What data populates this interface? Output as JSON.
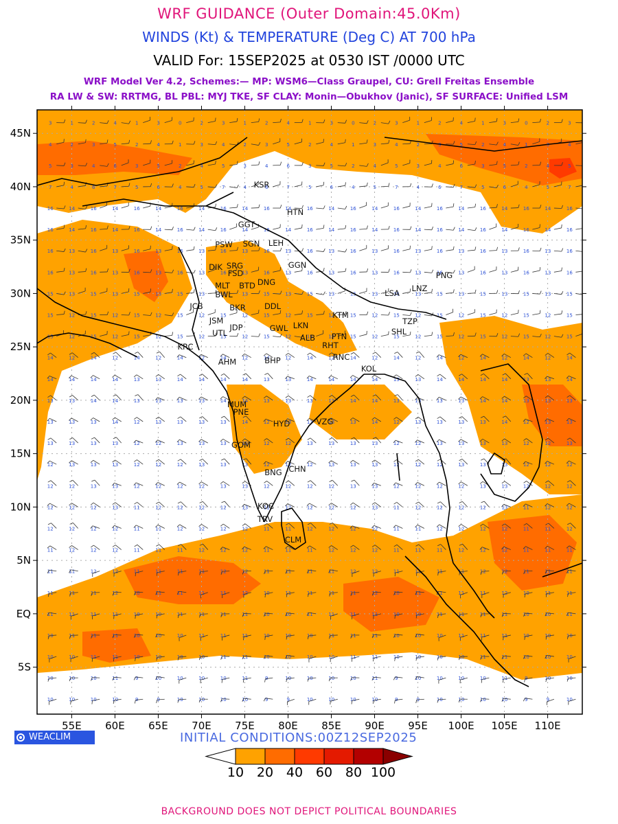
{
  "header": {
    "title": "WRF GUIDANCE (Outer Domain:45.0Km)",
    "subtitle": "WINDS (Kt) & TEMPERATURE (Deg C) AT 700 hPa",
    "valid": "VALID For: 15SEP2025 at 0530 IST /0000 UTC",
    "model_line1": "WRF Model Ver 4.2, Schemes:— MP: WSM6—Class Graupel, CU: Grell Freitas Ensemble",
    "model_line2": "RA LW & SW: RRTMG, BL PBL: MYJ TKE, SF CLAY: Monin—Obukhov (Janic), SF SURFACE: Unified LSM"
  },
  "map": {
    "lat_labels": [
      "45N",
      "40N",
      "35N",
      "30N",
      "25N",
      "20N",
      "15N",
      "10N",
      "5N",
      "EQ",
      "5S"
    ],
    "lon_labels": [
      "55E",
      "60E",
      "65E",
      "70E",
      "75E",
      "80E",
      "85E",
      "90E",
      "95E",
      "100E",
      "105E",
      "110E"
    ],
    "stations": [
      "KSR",
      "HTN",
      "GGT",
      "PSW",
      "SGN",
      "LEH",
      "DIK",
      "SRG",
      "FSD",
      "GGN",
      "MLT",
      "BTD",
      "DNG",
      "BWL",
      "JCB",
      "BKR",
      "DDL",
      "LSA",
      "LNZ",
      "PNG",
      "JSM",
      "JDP",
      "GWL",
      "LKN",
      "KTM",
      "TZP",
      "UTL",
      "ALB",
      "PTN",
      "SHL",
      "KRC",
      "BHP",
      "RHT",
      "RNC",
      "AHM",
      "KOL",
      "MUM",
      "PNE",
      "HYD",
      "VZG",
      "GOM",
      "BNG",
      "CHN",
      "KOC",
      "TRV",
      "CLM"
    ]
  },
  "legend": {
    "labels": [
      "10",
      "20",
      "40",
      "60",
      "80",
      "100"
    ],
    "colors": [
      "#ffffff",
      "#ffa200",
      "#ff6c00",
      "#ff3a00",
      "#e41a00",
      "#b30000",
      "#8a0000"
    ]
  },
  "colors": {
    "wind_shade_1": "#ffa200",
    "wind_shade_2": "#ff6c00",
    "wind_shade_3": "#ff3a00",
    "temperature_text": "#2a4fd6",
    "grid": "#aaaaaa"
  },
  "temperature_values": [
    "0",
    "1",
    "2",
    "3",
    "4",
    "5",
    "6",
    "7",
    "8",
    "9",
    "10",
    "11",
    "12",
    "13",
    "14",
    "15",
    "16",
    "17"
  ],
  "logo": {
    "text": "WEACLIM"
  },
  "initial_conditions": "INITIAL CONDITIONS:00Z12SEP2025",
  "footer": "BACKGROUND DOES NOT DEPICT POLITICAL BOUNDARIES"
}
